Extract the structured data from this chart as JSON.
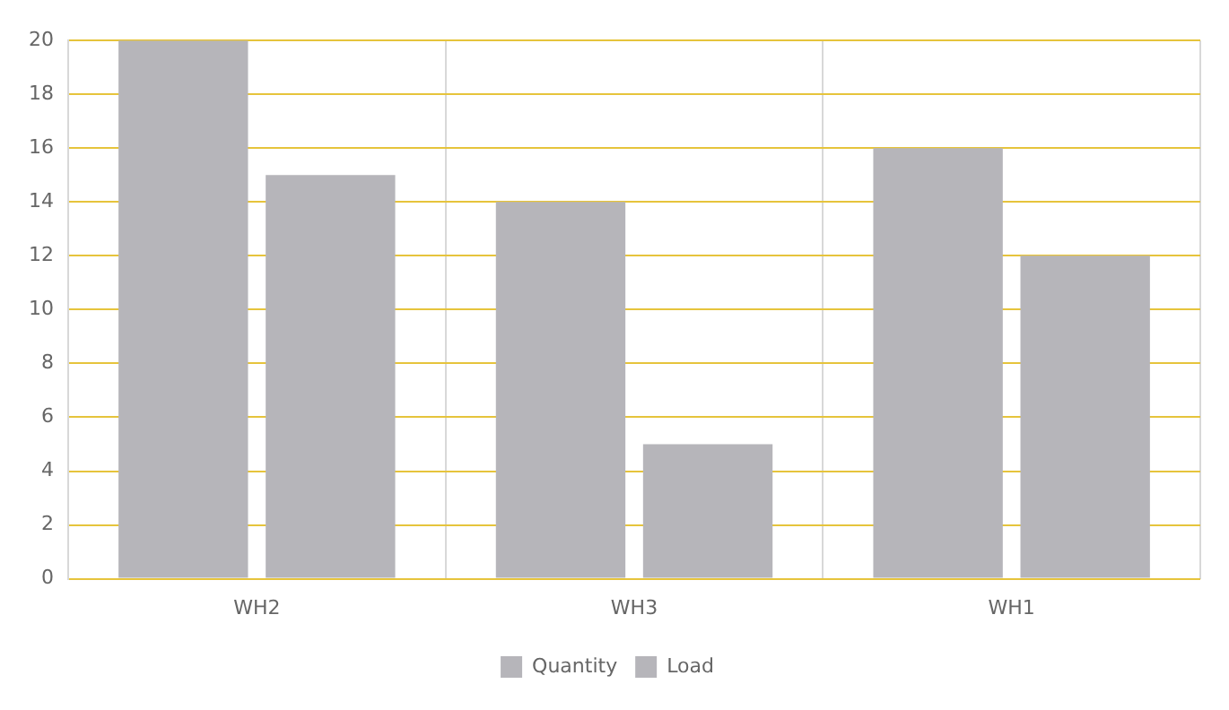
{
  "chart_data": {
    "type": "bar",
    "categories": [
      "WH2",
      "WH3",
      "WH1"
    ],
    "series": [
      {
        "name": "Quantity",
        "color": "#b6b5ba",
        "values": [
          20,
          14,
          16
        ]
      },
      {
        "name": "Load",
        "color": "#b6b5ba",
        "values": [
          15,
          5,
          12
        ]
      }
    ],
    "ylim": [
      0,
      20
    ],
    "yticks": [
      0,
      2,
      4,
      6,
      8,
      10,
      12,
      14,
      16,
      18,
      20
    ],
    "grid": true,
    "legend": "bottom"
  }
}
